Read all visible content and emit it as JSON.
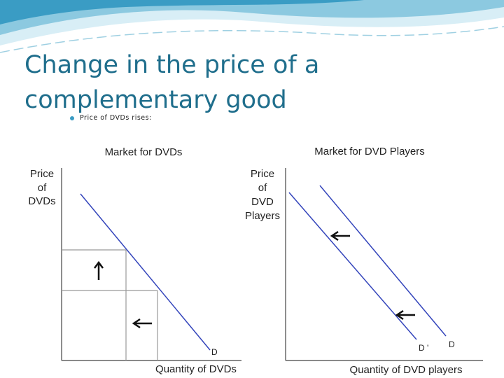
{
  "header": {
    "title": "Change in the price of a complementary good"
  },
  "bullets": [
    "Price of DVDs rises:"
  ],
  "diagrams": [
    {
      "title": "Market for DVDs",
      "y_label": [
        "Price",
        "of",
        "DVDs"
      ],
      "x_label": "Quantity of DVDs",
      "curves": [
        "D"
      ]
    },
    {
      "title": "Market for DVD Players",
      "y_label": [
        "Price",
        "of",
        "DVD",
        "Players"
      ],
      "x_label": "Quantity of DVD players",
      "curves": [
        "D '",
        "D"
      ]
    }
  ]
}
